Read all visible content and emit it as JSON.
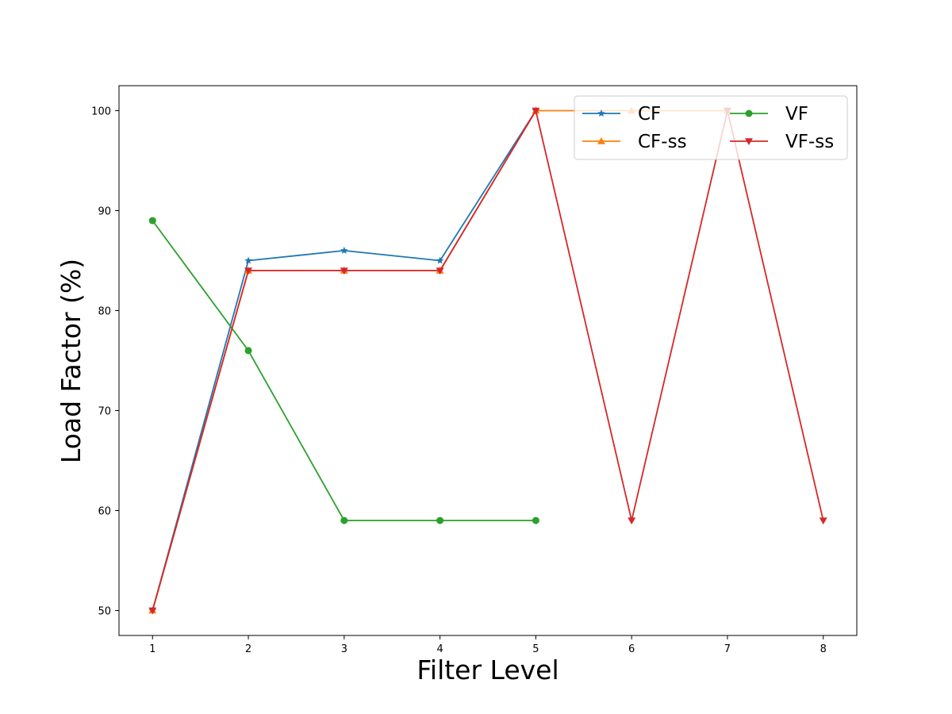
{
  "chart_data": {
    "type": "line",
    "title": "",
    "xlabel": "Filter Level",
    "ylabel": "Load Factor (%)",
    "xlim": [
      0.65,
      8.35
    ],
    "ylim": [
      47.5,
      102.5
    ],
    "xticks": [
      1,
      2,
      3,
      4,
      5,
      6,
      7,
      8
    ],
    "yticks": [
      50,
      60,
      70,
      80,
      90,
      100
    ],
    "grid": false,
    "legend": {
      "placement": "top-right",
      "columns": 2
    },
    "series": [
      {
        "name": "CF",
        "color": "#1f77b4",
        "marker": "star",
        "x": [
          1,
          2,
          3,
          4,
          5
        ],
        "y": [
          50,
          85,
          86,
          85,
          100
        ]
      },
      {
        "name": "CF-ss",
        "color": "#ff7f0e",
        "marker": "triangle-up",
        "x": [
          1,
          2,
          3,
          4,
          5,
          6,
          7
        ],
        "y": [
          50,
          84,
          84,
          84,
          100,
          100,
          100
        ]
      },
      {
        "name": "VF",
        "color": "#2ca02c",
        "marker": "circle",
        "x": [
          1,
          2,
          3,
          4,
          5
        ],
        "y": [
          89,
          76,
          59,
          59,
          59
        ]
      },
      {
        "name": "VF-ss",
        "color": "#d62728",
        "marker": "triangle-down",
        "x": [
          1,
          2,
          3,
          4,
          5,
          6,
          7,
          8
        ],
        "y": [
          50,
          84,
          84,
          84,
          100,
          59,
          100,
          59
        ]
      }
    ]
  }
}
